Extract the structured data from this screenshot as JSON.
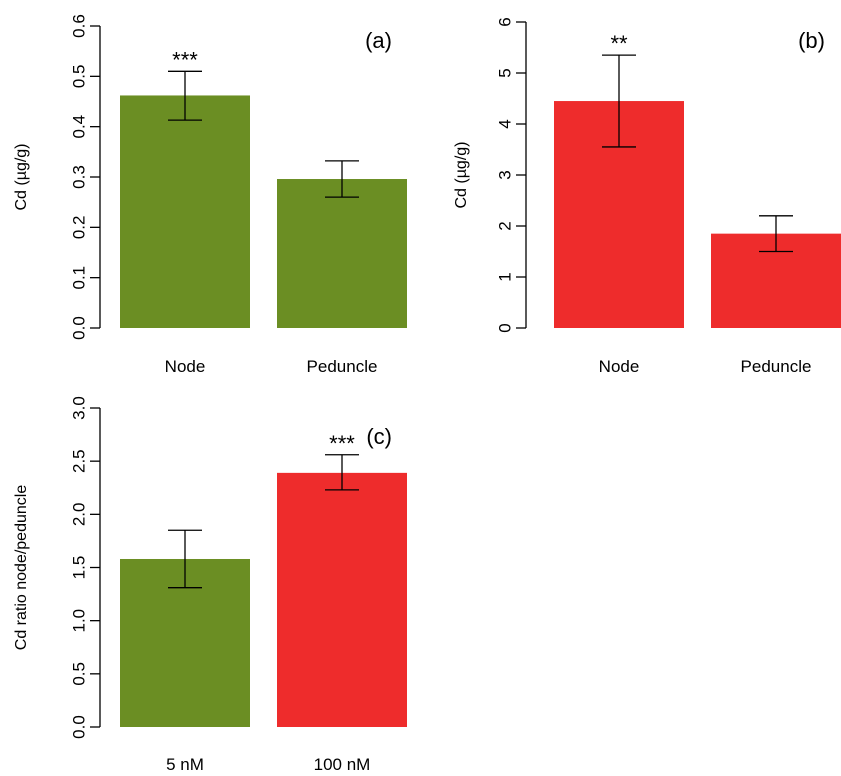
{
  "colors": {
    "green": "#6b8e23",
    "red": "#ee2c2c"
  },
  "chart_data": [
    {
      "type": "bar",
      "panel_label": "(a)",
      "ylabel": "Cd (µg/g)",
      "ylim": [
        0,
        0.6
      ],
      "yticks": [
        "0.0",
        "0.1",
        "0.2",
        "0.3",
        "0.4",
        "0.5",
        "0.6"
      ],
      "categories": [
        "Node",
        "Peduncle"
      ],
      "values": [
        0.462,
        0.296
      ],
      "error_low": [
        0.413,
        0.26
      ],
      "error_high": [
        0.51,
        0.332
      ],
      "significance": [
        "***",
        ""
      ],
      "bar_colors": [
        "#6b8e23",
        "#6b8e23"
      ]
    },
    {
      "type": "bar",
      "panel_label": "(b)",
      "ylabel": "Cd (µg/g)",
      "ylim": [
        0,
        6
      ],
      "yticks": [
        "0",
        "1",
        "2",
        "3",
        "4",
        "5",
        "6"
      ],
      "categories": [
        "Node",
        "Peduncle"
      ],
      "values": [
        4.45,
        1.85
      ],
      "error_low": [
        3.55,
        1.5
      ],
      "error_high": [
        5.35,
        2.2
      ],
      "significance": [
        "**",
        ""
      ],
      "bar_colors": [
        "#ee2c2c",
        "#ee2c2c"
      ]
    },
    {
      "type": "bar",
      "panel_label": "(c)",
      "ylabel": "Cd ratio node/peduncle",
      "ylim": [
        0,
        3
      ],
      "yticks": [
        "0.0",
        "0.5",
        "1.0",
        "1.5",
        "2.0",
        "2.5",
        "3.0"
      ],
      "categories": [
        "5 nM",
        "100 nM"
      ],
      "values": [
        1.58,
        2.39
      ],
      "error_low": [
        1.31,
        2.23
      ],
      "error_high": [
        1.85,
        2.56
      ],
      "significance": [
        "",
        "***"
      ],
      "bar_colors": [
        "#6b8e23",
        "#ee2c2c"
      ]
    }
  ]
}
